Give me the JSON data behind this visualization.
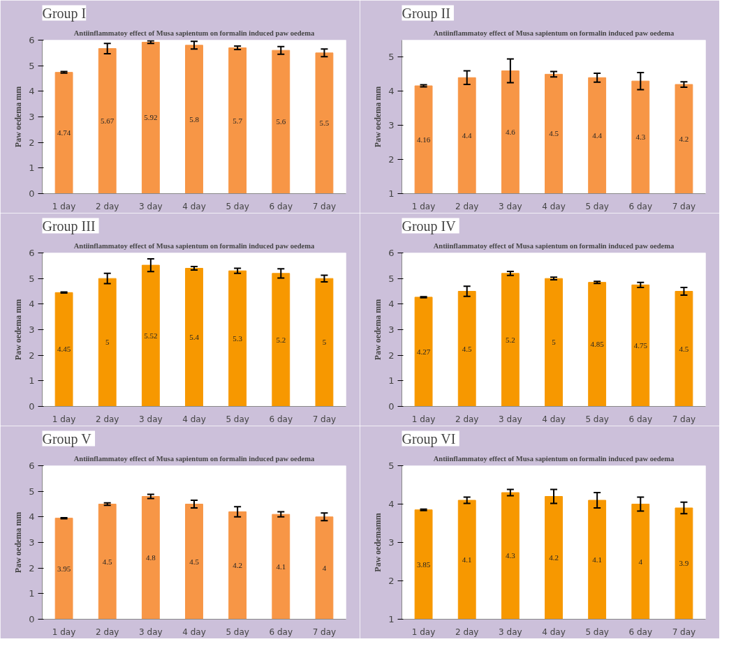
{
  "chart_data": [
    {
      "type": "bar",
      "title": "Group I",
      "subtitle": "Antiinflammatoy effect of Musa sapientum on formalin induced paw oedema",
      "ylabel": "Paw oedema mm",
      "categories": [
        "1 day",
        "2 day",
        "3 day",
        "4 day",
        "5 day",
        "6 day",
        "7 day"
      ],
      "color": "#f79646",
      "values": [
        4.74,
        5.67,
        5.92,
        5.8,
        5.7,
        5.6,
        5.5
      ],
      "errors": [
        0.03,
        0.2,
        0.05,
        0.15,
        0.07,
        0.15,
        0.15
      ],
      "ylim": [
        0,
        6
      ],
      "yticks": [
        0,
        1,
        2,
        3,
        4,
        5,
        6
      ],
      "data_labels": true
    },
    {
      "type": "bar",
      "title": "Group  II",
      "subtitle": "Antiinflammatoy effect of Musa sapientum on formalin induced paw oedema",
      "ylabel": "Paw oedema mm",
      "categories": [
        "1 day",
        "2 day",
        "3 day",
        "4 day",
        "5 day",
        "6 day",
        "7 day"
      ],
      "color": "#f79646",
      "values": [
        4.16,
        4.4,
        4.6,
        4.5,
        4.4,
        4.3,
        4.2
      ],
      "errors": [
        0.03,
        0.2,
        0.35,
        0.08,
        0.13,
        0.25,
        0.08
      ],
      "ylim": [
        1,
        5.5
      ],
      "yticks": [
        1,
        2,
        3,
        4,
        5
      ],
      "data_labels": true
    },
    {
      "type": "bar",
      "title": "Group  III",
      "subtitle": "Antiinflammatoy effect of Musa sapientum on formalin induced paw oedema",
      "ylabel": "Paw oedema mm",
      "categories": [
        "1 day",
        "2 day",
        "3 day",
        "4 day",
        "5 day",
        "6 day",
        "7 day"
      ],
      "color": "#f79800",
      "values": [
        4.45,
        5,
        5.52,
        5.4,
        5.3,
        5.2,
        5
      ],
      "errors": [
        0.02,
        0.2,
        0.25,
        0.07,
        0.1,
        0.18,
        0.13
      ],
      "ylim": [
        0,
        6
      ],
      "yticks": [
        0,
        1,
        2,
        3,
        4,
        5,
        6
      ],
      "data_labels": true
    },
    {
      "type": "bar",
      "title": "Group  IV",
      "subtitle": "Antiinflammatoy effect of Musa sapientum on formalin induced paw oedema",
      "ylabel": "Paw oedema mm",
      "categories": [
        "1 day",
        "2 day",
        "3 day",
        "4 day",
        "5 day",
        "6 day",
        "7 day"
      ],
      "color": "#f79800",
      "values": [
        4.27,
        4.5,
        5.2,
        5,
        4.85,
        4.75,
        4.5
      ],
      "errors": [
        0.02,
        0.2,
        0.08,
        0.05,
        0.04,
        0.1,
        0.15
      ],
      "ylim": [
        0,
        6
      ],
      "yticks": [
        0,
        1,
        2,
        3,
        4,
        5,
        6
      ],
      "data_labels": true
    },
    {
      "type": "bar",
      "title": "Group  V",
      "subtitle": "Antiinflammatoy effect of Musa sapientum on formalin induced paw oedema",
      "ylabel": "Paw oedema mm",
      "categories": [
        "1 day",
        "2 day",
        "3 day",
        "4 day",
        "5 day",
        "6 day",
        "7 day"
      ],
      "color": "#f79646",
      "values": [
        3.95,
        4.5,
        4.8,
        4.5,
        4.2,
        4.1,
        4
      ],
      "errors": [
        0.02,
        0.05,
        0.08,
        0.15,
        0.2,
        0.1,
        0.15
      ],
      "ylim": [
        0,
        6
      ],
      "yticks": [
        0,
        1,
        2,
        3,
        4,
        5,
        6
      ],
      "data_labels": true
    },
    {
      "type": "bar",
      "title": "Group  VI",
      "subtitle": "Antiinflammatoy effect of Musa sapientum on formalin induced paw oedema",
      "ylabel": "Paw oedemamm",
      "categories": [
        "1 day",
        "2 day",
        "3 day",
        "4 day",
        "5 day",
        "6 day",
        "7 day"
      ],
      "color": "#f79800",
      "values": [
        3.85,
        4.1,
        4.3,
        4.2,
        4.1,
        4,
        3.9
      ],
      "errors": [
        0.02,
        0.08,
        0.08,
        0.18,
        0.2,
        0.18,
        0.15
      ],
      "ylim": [
        1,
        5
      ],
      "yticks": [
        1,
        2,
        3,
        4,
        5
      ],
      "data_labels": true
    }
  ]
}
